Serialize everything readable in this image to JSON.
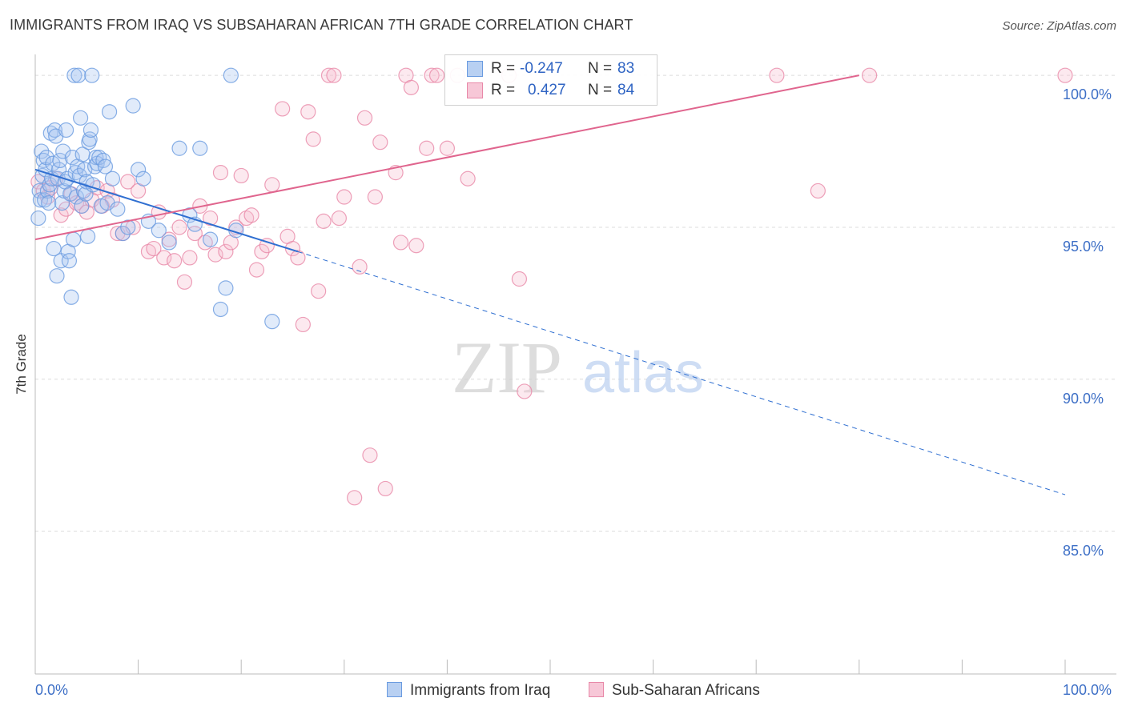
{
  "chart_title": "IMMIGRANTS FROM IRAQ VS SUBSAHARAN AFRICAN 7TH GRADE CORRELATION CHART",
  "source": "Source: ZipAtlas.com",
  "watermark": {
    "zip": "ZIP",
    "atlas": "atlas"
  },
  "colors": {
    "blue": "#6a9be0",
    "blue_fill": "#a9c7f0",
    "blue_line": "#2f6fd1",
    "pink": "#e888a8",
    "pink_fill": "#f6bfd2",
    "pink_line": "#e0658e",
    "tick_text": "#3d6fc6",
    "grid": "#dcdcdc"
  },
  "legend": {
    "rows": [
      {
        "r_label": "R =",
        "r_value": "-0.247",
        "n_label": "N =",
        "n_value": "83"
      },
      {
        "r_label": "R =",
        "r_value": "0.427",
        "n_label": "N =",
        "n_value": "84"
      }
    ]
  },
  "bottom_legend": {
    "series1": "Immigrants from Iraq",
    "series2": "Sub-Saharan Africans"
  },
  "axis": {
    "x_min_label": "0.0%",
    "x_max_label": "100.0%",
    "y_title": "7th Grade",
    "y_ticks": [
      "100.0%",
      "95.0%",
      "90.0%",
      "85.0%"
    ]
  },
  "chart_data": {
    "type": "scatter",
    "title": "IMMIGRANTS FROM IRAQ VS SUBSAHARAN AFRICAN 7TH GRADE CORRELATION CHART",
    "xlabel": "",
    "ylabel": "7th Grade",
    "xlim": [
      0,
      100
    ],
    "ylim": [
      80.3,
      100.9
    ],
    "y_ticks": [
      100,
      95,
      90,
      85
    ],
    "x_tick_positions": [
      0,
      10,
      20,
      30,
      40,
      50,
      60,
      70,
      80,
      90,
      100
    ],
    "grid": true,
    "series": [
      {
        "name": "Immigrants from Iraq",
        "R": -0.247,
        "N": 83,
        "trend": {
          "x0": 0,
          "y0": 96.9,
          "x1": 25.5,
          "y1": 94.2,
          "dash_x1": 100,
          "dash_y1": 86.2
        },
        "points": [
          [
            0.3,
            95.3
          ],
          [
            0.4,
            96.2
          ],
          [
            0.5,
            95.9
          ],
          [
            0.6,
            97.5
          ],
          [
            0.7,
            96.7
          ],
          [
            0.8,
            97.2
          ],
          [
            0.9,
            95.9
          ],
          [
            1.0,
            96.9
          ],
          [
            1.1,
            97.3
          ],
          [
            1.2,
            96.2
          ],
          [
            1.3,
            95.8
          ],
          [
            1.4,
            96.4
          ],
          [
            1.5,
            98.1
          ],
          [
            1.6,
            96.6
          ],
          [
            1.7,
            97.1
          ],
          [
            1.8,
            94.3
          ],
          [
            1.9,
            98.2
          ],
          [
            2.0,
            98.0
          ],
          [
            2.1,
            93.4
          ],
          [
            2.2,
            96.6
          ],
          [
            2.3,
            96.9
          ],
          [
            2.4,
            97.2
          ],
          [
            2.5,
            93.9
          ],
          [
            2.6,
            95.8
          ],
          [
            2.7,
            97.5
          ],
          [
            2.8,
            96.2
          ],
          [
            2.9,
            96.5
          ],
          [
            3.0,
            98.2
          ],
          [
            3.1,
            96.6
          ],
          [
            3.2,
            94.2
          ],
          [
            3.3,
            93.9
          ],
          [
            3.4,
            96.1
          ],
          [
            3.5,
            92.7
          ],
          [
            3.6,
            97.3
          ],
          [
            3.7,
            94.6
          ],
          [
            3.8,
            100.0
          ],
          [
            3.9,
            96.8
          ],
          [
            4.0,
            96.0
          ],
          [
            4.1,
            97.0
          ],
          [
            4.2,
            100.0
          ],
          [
            4.3,
            96.7
          ],
          [
            4.4,
            98.6
          ],
          [
            4.5,
            95.7
          ],
          [
            4.6,
            97.4
          ],
          [
            4.7,
            96.2
          ],
          [
            4.8,
            96.9
          ],
          [
            4.9,
            96.1
          ],
          [
            5.0,
            96.5
          ],
          [
            5.1,
            94.7
          ],
          [
            5.2,
            97.8
          ],
          [
            5.3,
            97.9
          ],
          [
            5.4,
            98.2
          ],
          [
            5.5,
            100.0
          ],
          [
            5.6,
            96.4
          ],
          [
            5.8,
            97.0
          ],
          [
            5.9,
            97.3
          ],
          [
            6.0,
            97.1
          ],
          [
            6.2,
            97.3
          ],
          [
            6.4,
            95.7
          ],
          [
            6.6,
            97.2
          ],
          [
            6.8,
            97.0
          ],
          [
            7.0,
            95.8
          ],
          [
            7.2,
            98.8
          ],
          [
            7.5,
            96.6
          ],
          [
            8.0,
            95.6
          ],
          [
            8.5,
            94.8
          ],
          [
            9.0,
            95.0
          ],
          [
            9.5,
            99.0
          ],
          [
            10.0,
            96.9
          ],
          [
            10.5,
            96.6
          ],
          [
            11.0,
            95.2
          ],
          [
            12.0,
            94.9
          ],
          [
            13.0,
            94.5
          ],
          [
            14.0,
            97.6
          ],
          [
            15.0,
            95.4
          ],
          [
            15.5,
            95.1
          ],
          [
            16.0,
            97.6
          ],
          [
            17.0,
            94.6
          ],
          [
            18.0,
            92.3
          ],
          [
            18.5,
            93.0
          ],
          [
            19.0,
            100.0
          ],
          [
            19.5,
            94.9
          ],
          [
            23.0,
            91.9
          ]
        ]
      },
      {
        "name": "Sub-Saharan Africans",
        "R": 0.427,
        "N": 84,
        "trend": {
          "x0": 0,
          "y0": 94.6,
          "x1": 80,
          "y1": 100.0
        },
        "points": [
          [
            0.3,
            96.5
          ],
          [
            0.8,
            96.2
          ],
          [
            1.2,
            96.0
          ],
          [
            1.5,
            96.3
          ],
          [
            2.0,
            96.6
          ],
          [
            2.5,
            95.4
          ],
          [
            3.0,
            95.6
          ],
          [
            3.5,
            96.1
          ],
          [
            4.0,
            95.8
          ],
          [
            4.5,
            95.7
          ],
          [
            5.0,
            95.5
          ],
          [
            5.5,
            95.9
          ],
          [
            6.0,
            96.3
          ],
          [
            6.5,
            95.7
          ],
          [
            7.0,
            96.2
          ],
          [
            7.5,
            95.9
          ],
          [
            8.0,
            94.8
          ],
          [
            8.5,
            94.8
          ],
          [
            9.0,
            96.5
          ],
          [
            9.5,
            95.0
          ],
          [
            10.0,
            96.2
          ],
          [
            11.0,
            94.2
          ],
          [
            11.5,
            94.3
          ],
          [
            12.0,
            95.5
          ],
          [
            12.5,
            94.0
          ],
          [
            13.0,
            94.6
          ],
          [
            13.5,
            93.9
          ],
          [
            14.0,
            95.0
          ],
          [
            14.5,
            93.2
          ],
          [
            15.0,
            94.0
          ],
          [
            15.5,
            94.8
          ],
          [
            16.0,
            95.7
          ],
          [
            16.5,
            94.5
          ],
          [
            17.0,
            95.3
          ],
          [
            17.5,
            94.1
          ],
          [
            18.0,
            96.8
          ],
          [
            18.5,
            94.2
          ],
          [
            19.0,
            94.5
          ],
          [
            19.5,
            95.0
          ],
          [
            20.0,
            96.7
          ],
          [
            20.5,
            95.3
          ],
          [
            21.0,
            95.4
          ],
          [
            21.5,
            93.6
          ],
          [
            22.0,
            94.2
          ],
          [
            22.5,
            94.4
          ],
          [
            23.0,
            96.4
          ],
          [
            24.0,
            98.9
          ],
          [
            24.5,
            94.7
          ],
          [
            25.0,
            94.3
          ],
          [
            25.5,
            94.0
          ],
          [
            26.0,
            91.8
          ],
          [
            26.5,
            98.8
          ],
          [
            27.0,
            97.9
          ],
          [
            27.5,
            92.9
          ],
          [
            28.0,
            95.2
          ],
          [
            28.5,
            100.0
          ],
          [
            29.0,
            100.0
          ],
          [
            29.5,
            95.3
          ],
          [
            30.0,
            96.0
          ],
          [
            31.0,
            86.1
          ],
          [
            31.5,
            93.7
          ],
          [
            32.0,
            98.6
          ],
          [
            32.5,
            87.5
          ],
          [
            33.0,
            96.0
          ],
          [
            33.5,
            97.8
          ],
          [
            34.0,
            86.4
          ],
          [
            35.0,
            96.8
          ],
          [
            35.5,
            94.5
          ],
          [
            36.0,
            100.0
          ],
          [
            36.5,
            99.6
          ],
          [
            37.0,
            94.4
          ],
          [
            38.0,
            97.6
          ],
          [
            38.5,
            100.0
          ],
          [
            39.0,
            100.0
          ],
          [
            40.0,
            97.6
          ],
          [
            41.0,
            100.0
          ],
          [
            42.0,
            96.6
          ],
          [
            46.0,
            100.0
          ],
          [
            47.0,
            93.3
          ],
          [
            47.5,
            89.6
          ],
          [
            72.0,
            100.0
          ],
          [
            76.0,
            96.2
          ],
          [
            81.0,
            100.0
          ],
          [
            100.0,
            100.0
          ]
        ]
      }
    ]
  }
}
